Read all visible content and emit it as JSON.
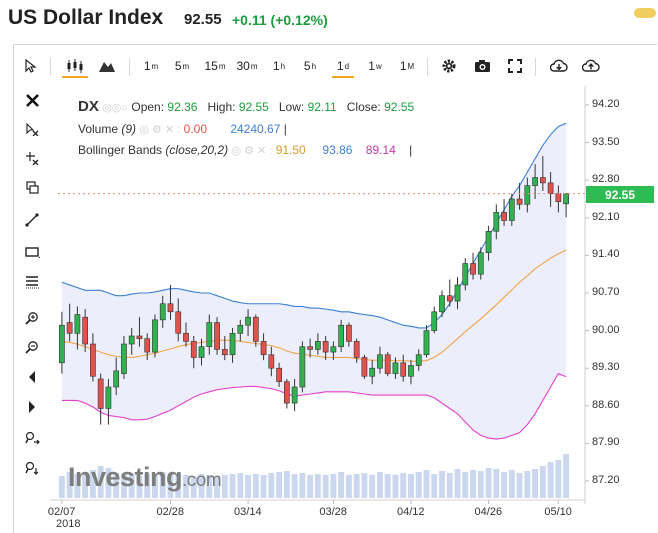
{
  "header": {
    "title": "US Dollar Index",
    "last": "92.55",
    "change": "+0.11 (+0.12%)"
  },
  "toolbar": {
    "intervals": [
      {
        "main": "1",
        "sup": "m"
      },
      {
        "main": "5",
        "sup": "m"
      },
      {
        "main": "15",
        "sup": "m"
      },
      {
        "main": "30",
        "sup": "m"
      },
      {
        "main": "1",
        "sup": "h"
      },
      {
        "main": "5",
        "sup": "h"
      },
      {
        "main": "1",
        "sup": "d"
      },
      {
        "main": "1",
        "sup": "w"
      },
      {
        "main": "1",
        "sup": "M"
      }
    ],
    "active_interval": "1d"
  },
  "legend": {
    "symbol": "DX",
    "open_label": "Open:",
    "open": "92.36",
    "high_label": "High:",
    "high": "92.55",
    "low_label": "Low:",
    "low": "92.11",
    "close_label": "Close:",
    "close": "92.55",
    "volume_label": "Volume",
    "volume_param": "(9)",
    "volume_val1": "0.00",
    "volume_val2": "24240.67",
    "bb_label": "Bollinger Bands",
    "bb_param": "(close,20,2)",
    "bb_mid": "91.50",
    "bb_up": "93.86",
    "bb_low": "89.14"
  },
  "price_tag": "92.55",
  "logo": {
    "main": "Investing",
    "suffix": ".com"
  },
  "year_label": "2018",
  "chart_data": {
    "type": "candlestick",
    "symbol": "DX",
    "yaxis_ticks": [
      "94.20",
      "93.50",
      "92.80",
      "92.10",
      "91.40",
      "90.70",
      "90.00",
      "89.30",
      "88.60",
      "87.90",
      "87.20"
    ],
    "ylim": [
      87.1,
      94.4
    ],
    "xaxis_ticks": [
      "02/07",
      "02/28",
      "03/14",
      "03/28",
      "04/12",
      "04/26",
      "05/10"
    ],
    "colors": {
      "up": "#2fb24f",
      "down": "#e0524c",
      "bb_upper": "#3a7fd1",
      "bb_mid": "#f0a44a",
      "bb_lower": "#e63fd0",
      "bb_fill": "#eceefc",
      "volume": "#b9c8ea"
    },
    "candles": [
      {
        "o": 89.4,
        "h": 90.35,
        "l": 89.2,
        "c": 90.1
      },
      {
        "o": 90.15,
        "h": 90.5,
        "l": 89.8,
        "c": 89.95
      },
      {
        "o": 89.95,
        "h": 90.45,
        "l": 89.65,
        "c": 90.3
      },
      {
        "o": 90.25,
        "h": 90.4,
        "l": 89.6,
        "c": 89.75
      },
      {
        "o": 89.75,
        "h": 89.95,
        "l": 89.05,
        "c": 89.15
      },
      {
        "o": 89.1,
        "h": 89.2,
        "l": 88.25,
        "c": 88.55
      },
      {
        "o": 88.55,
        "h": 89.1,
        "l": 88.25,
        "c": 88.95
      },
      {
        "o": 88.95,
        "h": 89.5,
        "l": 88.8,
        "c": 89.25
      },
      {
        "o": 89.2,
        "h": 89.9,
        "l": 89.1,
        "c": 89.75
      },
      {
        "o": 89.75,
        "h": 90.05,
        "l": 89.55,
        "c": 89.9
      },
      {
        "o": 89.9,
        "h": 90.25,
        "l": 89.7,
        "c": 89.85
      },
      {
        "o": 89.85,
        "h": 89.95,
        "l": 89.45,
        "c": 89.6
      },
      {
        "o": 89.6,
        "h": 90.3,
        "l": 89.5,
        "c": 90.2
      },
      {
        "o": 90.2,
        "h": 90.65,
        "l": 90.05,
        "c": 90.5
      },
      {
        "o": 90.5,
        "h": 90.85,
        "l": 90.2,
        "c": 90.35
      },
      {
        "o": 90.35,
        "h": 90.6,
        "l": 89.8,
        "c": 89.95
      },
      {
        "o": 89.95,
        "h": 90.15,
        "l": 89.7,
        "c": 89.8
      },
      {
        "o": 89.8,
        "h": 89.9,
        "l": 89.3,
        "c": 89.5
      },
      {
        "o": 89.5,
        "h": 89.85,
        "l": 89.35,
        "c": 89.7
      },
      {
        "o": 89.7,
        "h": 90.3,
        "l": 89.55,
        "c": 90.15
      },
      {
        "o": 90.15,
        "h": 90.25,
        "l": 89.55,
        "c": 89.65
      },
      {
        "o": 89.65,
        "h": 89.9,
        "l": 89.45,
        "c": 89.55
      },
      {
        "o": 89.55,
        "h": 90.05,
        "l": 89.4,
        "c": 89.95
      },
      {
        "o": 89.95,
        "h": 90.2,
        "l": 89.8,
        "c": 90.1
      },
      {
        "o": 90.1,
        "h": 90.4,
        "l": 89.9,
        "c": 90.25
      },
      {
        "o": 90.25,
        "h": 90.3,
        "l": 89.7,
        "c": 89.8
      },
      {
        "o": 89.8,
        "h": 89.95,
        "l": 89.45,
        "c": 89.55
      },
      {
        "o": 89.55,
        "h": 89.7,
        "l": 89.15,
        "c": 89.3
      },
      {
        "o": 89.3,
        "h": 89.4,
        "l": 88.95,
        "c": 89.05
      },
      {
        "o": 89.05,
        "h": 89.1,
        "l": 88.55,
        "c": 88.65
      },
      {
        "o": 88.65,
        "h": 89.1,
        "l": 88.5,
        "c": 88.95
      },
      {
        "o": 88.95,
        "h": 89.8,
        "l": 88.85,
        "c": 89.7
      },
      {
        "o": 89.7,
        "h": 89.85,
        "l": 89.5,
        "c": 89.65
      },
      {
        "o": 89.65,
        "h": 89.95,
        "l": 89.55,
        "c": 89.8
      },
      {
        "o": 89.8,
        "h": 89.9,
        "l": 89.45,
        "c": 89.6
      },
      {
        "o": 89.6,
        "h": 89.8,
        "l": 89.45,
        "c": 89.7
      },
      {
        "o": 89.7,
        "h": 90.2,
        "l": 89.6,
        "c": 90.1
      },
      {
        "o": 90.1,
        "h": 90.15,
        "l": 89.7,
        "c": 89.8
      },
      {
        "o": 89.8,
        "h": 89.85,
        "l": 89.4,
        "c": 89.5
      },
      {
        "o": 89.5,
        "h": 89.55,
        "l": 89.1,
        "c": 89.15
      },
      {
        "o": 89.15,
        "h": 89.45,
        "l": 89.0,
        "c": 89.3
      },
      {
        "o": 89.3,
        "h": 89.7,
        "l": 89.2,
        "c": 89.55
      },
      {
        "o": 89.55,
        "h": 89.6,
        "l": 89.15,
        "c": 89.2
      },
      {
        "o": 89.2,
        "h": 89.5,
        "l": 89.1,
        "c": 89.4
      },
      {
        "o": 89.4,
        "h": 89.55,
        "l": 89.05,
        "c": 89.15
      },
      {
        "o": 89.15,
        "h": 89.45,
        "l": 89.0,
        "c": 89.35
      },
      {
        "o": 89.35,
        "h": 89.65,
        "l": 89.25,
        "c": 89.55
      },
      {
        "o": 89.55,
        "h": 90.1,
        "l": 89.5,
        "c": 90.0
      },
      {
        "o": 90.0,
        "h": 90.45,
        "l": 89.95,
        "c": 90.35
      },
      {
        "o": 90.35,
        "h": 90.75,
        "l": 90.25,
        "c": 90.65
      },
      {
        "o": 90.65,
        "h": 90.95,
        "l": 90.45,
        "c": 90.55
      },
      {
        "o": 90.55,
        "h": 91.0,
        "l": 90.4,
        "c": 90.85
      },
      {
        "o": 90.85,
        "h": 91.35,
        "l": 90.75,
        "c": 91.25
      },
      {
        "o": 91.25,
        "h": 91.45,
        "l": 90.95,
        "c": 91.05
      },
      {
        "o": 91.05,
        "h": 91.55,
        "l": 90.95,
        "c": 91.45
      },
      {
        "o": 91.45,
        "h": 91.95,
        "l": 91.3,
        "c": 91.85
      },
      {
        "o": 91.85,
        "h": 92.35,
        "l": 91.7,
        "c": 92.2
      },
      {
        "o": 92.2,
        "h": 92.45,
        "l": 91.95,
        "c": 92.05
      },
      {
        "o": 92.05,
        "h": 92.55,
        "l": 91.95,
        "c": 92.45
      },
      {
        "o": 92.45,
        "h": 92.75,
        "l": 92.25,
        "c": 92.35
      },
      {
        "o": 92.35,
        "h": 92.85,
        "l": 92.2,
        "c": 92.7
      },
      {
        "o": 92.7,
        "h": 93.1,
        "l": 92.45,
        "c": 92.85
      },
      {
        "o": 92.85,
        "h": 93.25,
        "l": 92.6,
        "c": 92.75
      },
      {
        "o": 92.75,
        "h": 92.95,
        "l": 92.3,
        "c": 92.55
      },
      {
        "o": 92.55,
        "h": 92.7,
        "l": 92.2,
        "c": 92.4
      },
      {
        "o": 92.36,
        "h": 92.55,
        "l": 92.11,
        "c": 92.55
      }
    ],
    "bb_upper": [
      90.9,
      90.85,
      90.8,
      90.75,
      90.75,
      90.75,
      90.7,
      90.65,
      90.65,
      90.68,
      90.7,
      90.7,
      90.72,
      90.75,
      90.78,
      90.78,
      90.75,
      90.72,
      90.7,
      90.7,
      90.65,
      90.6,
      90.55,
      90.52,
      90.5,
      90.5,
      90.5,
      90.5,
      90.5,
      90.48,
      90.45,
      90.45,
      90.42,
      90.42,
      90.4,
      90.38,
      90.35,
      90.35,
      90.32,
      90.3,
      90.28,
      90.25,
      90.2,
      90.15,
      90.1,
      90.08,
      90.05,
      90.05,
      90.15,
      90.3,
      90.5,
      90.75,
      91.0,
      91.25,
      91.5,
      91.75,
      92.0,
      92.25,
      92.5,
      92.7,
      92.95,
      93.2,
      93.45,
      93.65,
      93.8,
      93.86
    ],
    "bb_mid": [
      89.8,
      89.78,
      89.75,
      89.7,
      89.65,
      89.6,
      89.55,
      89.52,
      89.5,
      89.5,
      89.52,
      89.55,
      89.58,
      89.62,
      89.66,
      89.7,
      89.74,
      89.76,
      89.78,
      89.8,
      89.82,
      89.82,
      89.82,
      89.8,
      89.78,
      89.76,
      89.74,
      89.72,
      89.68,
      89.62,
      89.58,
      89.56,
      89.54,
      89.52,
      89.5,
      89.5,
      89.5,
      89.5,
      89.48,
      89.46,
      89.45,
      89.45,
      89.45,
      89.44,
      89.44,
      89.43,
      89.43,
      89.44,
      89.5,
      89.6,
      89.72,
      89.85,
      89.98,
      90.1,
      90.22,
      90.35,
      90.48,
      90.62,
      90.76,
      90.9,
      91.02,
      91.15,
      91.25,
      91.35,
      91.43,
      91.5
    ],
    "bb_lower": [
      88.7,
      88.7,
      88.7,
      88.65,
      88.58,
      88.48,
      88.42,
      88.4,
      88.38,
      88.34,
      88.34,
      88.35,
      88.4,
      88.46,
      88.52,
      88.6,
      88.68,
      88.76,
      88.82,
      88.86,
      88.9,
      88.92,
      88.94,
      88.95,
      88.96,
      88.96,
      88.94,
      88.92,
      88.88,
      88.82,
      88.78,
      88.8,
      88.82,
      88.84,
      88.86,
      88.86,
      88.86,
      88.86,
      88.84,
      88.82,
      88.8,
      88.8,
      88.8,
      88.8,
      88.8,
      88.8,
      88.8,
      88.8,
      88.75,
      88.65,
      88.55,
      88.45,
      88.3,
      88.15,
      88.05,
      88.0,
      87.98,
      88.0,
      88.05,
      88.1,
      88.25,
      88.45,
      88.7,
      88.95,
      89.2,
      89.14
    ],
    "volume": [
      0,
      0,
      0,
      0,
      0,
      0,
      0,
      0,
      0,
      0,
      0,
      0,
      0,
      0,
      0,
      0,
      0,
      0,
      0,
      0,
      0,
      0,
      0,
      0,
      0,
      0,
      0,
      0,
      0,
      0,
      0,
      0,
      0,
      0,
      0,
      0,
      0,
      0,
      0,
      0,
      0,
      0,
      0,
      0,
      0,
      0,
      0,
      0,
      0,
      0,
      0,
      0,
      0,
      0,
      0,
      0,
      0,
      0,
      0,
      0,
      0,
      0,
      0,
      0,
      0,
      24240.67
    ]
  }
}
